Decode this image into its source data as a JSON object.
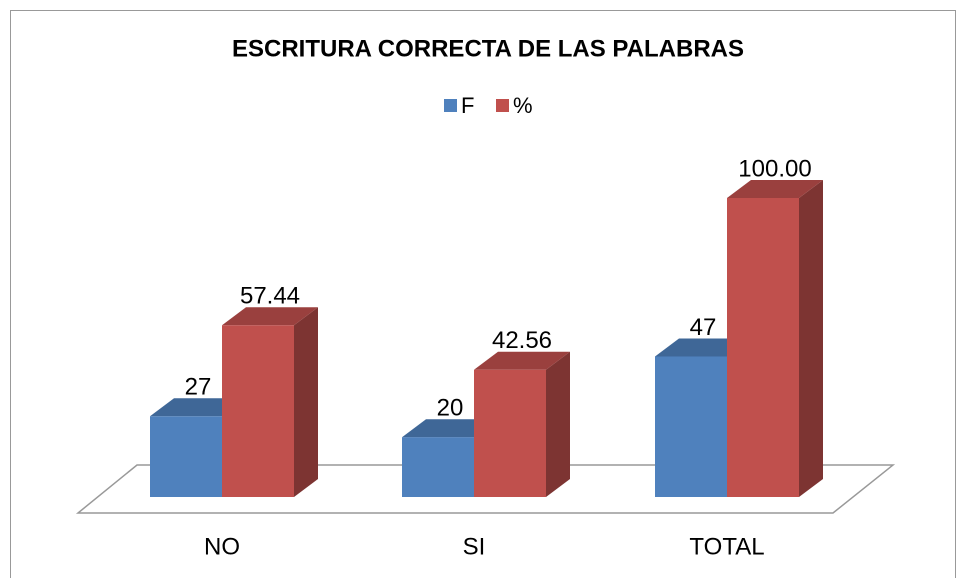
{
  "chart_data": {
    "type": "bar3d",
    "title": "ESCRITURA CORRECTA DE LAS PALABRAS",
    "categories": [
      "NO",
      "SI",
      "TOTAL"
    ],
    "series": [
      {
        "name": "F",
        "color": "#4f81bd",
        "values": [
          27,
          20,
          47
        ]
      },
      {
        "name": "%",
        "color": "#c0504d",
        "values": [
          57.44,
          42.56,
          100
        ],
        "value_labels": [
          "57.44",
          "42.56",
          "100.00"
        ]
      }
    ],
    "legend": "top"
  }
}
